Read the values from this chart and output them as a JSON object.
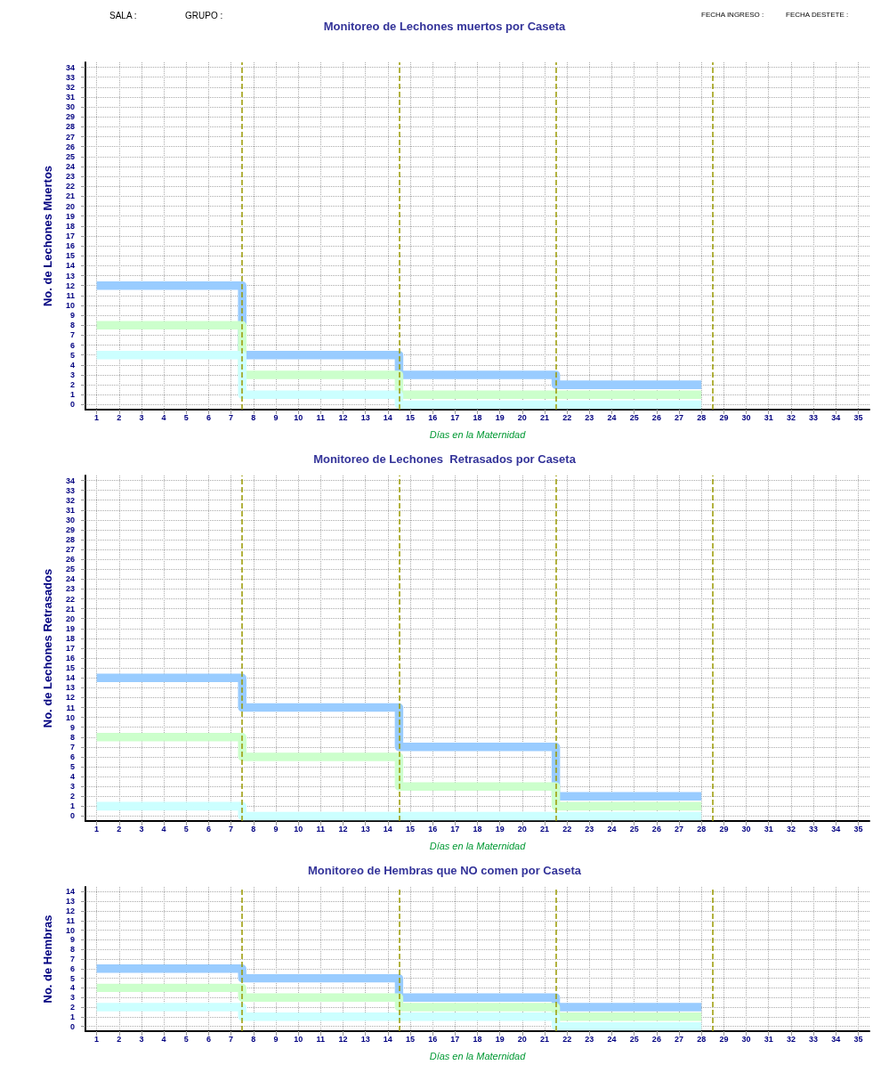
{
  "chart_data": [
    {
      "type": "step",
      "title": "Monitoreo de Lechones muertos por Caseta",
      "xlabel": "Días en la Maternidad",
      "ylabel": "No. de Lechones Muertos",
      "annotations": [
        "SALA :",
        "GRUPO :",
        "FECHA INGRESO :",
        "FECHA DESTETE :"
      ],
      "x": [
        1,
        2,
        3,
        4,
        5,
        6,
        7,
        8,
        9,
        10,
        11,
        12,
        13,
        14,
        15,
        16,
        17,
        18,
        19,
        20,
        21,
        22,
        23,
        24,
        25,
        26,
        27,
        28
      ],
      "xlim": [
        0.5,
        35.5
      ],
      "xticks": [
        1,
        2,
        3,
        4,
        5,
        6,
        7,
        8,
        9,
        10,
        11,
        12,
        13,
        14,
        15,
        16,
        17,
        18,
        19,
        20,
        21,
        22,
        23,
        24,
        25,
        26,
        27,
        28,
        29,
        30,
        31,
        32,
        33,
        34,
        35
      ],
      "ylim": [
        -0.5,
        34.5
      ],
      "yticks": [
        0,
        1,
        2,
        3,
        4,
        5,
        6,
        7,
        8,
        9,
        10,
        11,
        12,
        13,
        14,
        15,
        16,
        17,
        18,
        19,
        20,
        21,
        22,
        23,
        24,
        25,
        26,
        27,
        28,
        29,
        30,
        31,
        32,
        33,
        34
      ],
      "grid": true,
      "ref_lines": [
        {
          "axis": "x",
          "value": 7.5,
          "color": "#999900",
          "line_style": "dashed"
        },
        {
          "axis": "x",
          "value": 14.5,
          "color": "#999900",
          "line_style": "dashed"
        },
        {
          "axis": "x",
          "value": 21.5,
          "color": "#999900",
          "line_style": "dashed"
        },
        {
          "axis": "x",
          "value": 28.5,
          "color": "#999900",
          "line_style": "dashed"
        }
      ],
      "series": [
        {
          "color": "#99ccff",
          "values": [
            12,
            12,
            12,
            12,
            12,
            12,
            12,
            5,
            5,
            5,
            5,
            5,
            5,
            5,
            3,
            3,
            3,
            3,
            3,
            3,
            3,
            2,
            2,
            2,
            2,
            2,
            2,
            2
          ]
        },
        {
          "color": "#ccffcc",
          "values": [
            8,
            8,
            8,
            8,
            8,
            8,
            8,
            3,
            3,
            3,
            3,
            3,
            3,
            3,
            1,
            1,
            1,
            1,
            1,
            1,
            1,
            1,
            1,
            1,
            1,
            1,
            1,
            1
          ]
        },
        {
          "color": "#ccffff",
          "values": [
            5,
            5,
            5,
            5,
            5,
            5,
            5,
            1,
            1,
            1,
            1,
            1,
            1,
            1,
            0,
            0,
            0,
            0,
            0,
            0,
            0,
            0,
            0,
            0,
            0,
            0,
            0,
            0
          ]
        }
      ]
    },
    {
      "type": "step",
      "title": "Monitoreo de Lechones  Retrasados por Caseta",
      "xlabel": "Días en la Maternidad",
      "ylabel": "No. de Lechones Retrasados",
      "x": [
        1,
        2,
        3,
        4,
        5,
        6,
        7,
        8,
        9,
        10,
        11,
        12,
        13,
        14,
        15,
        16,
        17,
        18,
        19,
        20,
        21,
        22,
        23,
        24,
        25,
        26,
        27,
        28
      ],
      "xlim": [
        0.5,
        35.5
      ],
      "xticks": [
        1,
        2,
        3,
        4,
        5,
        6,
        7,
        8,
        9,
        10,
        11,
        12,
        13,
        14,
        15,
        16,
        17,
        18,
        19,
        20,
        21,
        22,
        23,
        24,
        25,
        26,
        27,
        28,
        29,
        30,
        31,
        32,
        33,
        34,
        35
      ],
      "ylim": [
        -0.5,
        34.5
      ],
      "yticks": [
        0,
        1,
        2,
        3,
        4,
        5,
        6,
        7,
        8,
        9,
        10,
        11,
        12,
        13,
        14,
        15,
        16,
        17,
        18,
        19,
        20,
        21,
        22,
        23,
        24,
        25,
        26,
        27,
        28,
        29,
        30,
        31,
        32,
        33,
        34
      ],
      "grid": true,
      "ref_lines": [
        {
          "axis": "x",
          "value": 7.5,
          "color": "#999900",
          "line_style": "dashed"
        },
        {
          "axis": "x",
          "value": 14.5,
          "color": "#999900",
          "line_style": "dashed"
        },
        {
          "axis": "x",
          "value": 21.5,
          "color": "#999900",
          "line_style": "dashed"
        },
        {
          "axis": "x",
          "value": 28.5,
          "color": "#999900",
          "line_style": "dashed"
        }
      ],
      "series": [
        {
          "color": "#99ccff",
          "values": [
            14,
            14,
            14,
            14,
            14,
            14,
            14,
            11,
            11,
            11,
            11,
            11,
            11,
            11,
            7,
            7,
            7,
            7,
            7,
            7,
            7,
            2,
            2,
            2,
            2,
            2,
            2,
            2
          ]
        },
        {
          "color": "#ccffcc",
          "values": [
            8,
            8,
            8,
            8,
            8,
            8,
            8,
            6,
            6,
            6,
            6,
            6,
            6,
            6,
            3,
            3,
            3,
            3,
            3,
            3,
            3,
            1,
            1,
            1,
            1,
            1,
            1,
            1
          ]
        },
        {
          "color": "#ccffff",
          "values": [
            1,
            1,
            1,
            1,
            1,
            1,
            1,
            0,
            0,
            0,
            0,
            0,
            0,
            0,
            0,
            0,
            0,
            0,
            0,
            0,
            0,
            0,
            0,
            0,
            0,
            0,
            0,
            0
          ]
        }
      ]
    },
    {
      "type": "step",
      "title": "Monitoreo de Hembras que NO comen por Caseta",
      "xlabel": "Días en la Maternidad",
      "ylabel": "No. de Hembras",
      "x": [
        1,
        2,
        3,
        4,
        5,
        6,
        7,
        8,
        9,
        10,
        11,
        12,
        13,
        14,
        15,
        16,
        17,
        18,
        19,
        20,
        21,
        22,
        23,
        24,
        25,
        26,
        27,
        28
      ],
      "xlim": [
        0.5,
        35.5
      ],
      "xticks": [
        1,
        2,
        3,
        4,
        5,
        6,
        7,
        8,
        9,
        10,
        11,
        12,
        13,
        14,
        15,
        16,
        17,
        18,
        19,
        20,
        21,
        22,
        23,
        24,
        25,
        26,
        27,
        28,
        29,
        30,
        31,
        32,
        33,
        34,
        35
      ],
      "ylim": [
        -0.5,
        14.5
      ],
      "yticks": [
        0,
        1,
        2,
        3,
        4,
        5,
        6,
        7,
        8,
        9,
        10,
        11,
        12,
        13,
        14
      ],
      "grid": true,
      "ref_lines": [
        {
          "axis": "x",
          "value": 7.5,
          "color": "#999900",
          "line_style": "dashed"
        },
        {
          "axis": "x",
          "value": 14.5,
          "color": "#999900",
          "line_style": "dashed"
        },
        {
          "axis": "x",
          "value": 21.5,
          "color": "#999900",
          "line_style": "dashed"
        },
        {
          "axis": "x",
          "value": 28.5,
          "color": "#999900",
          "line_style": "dashed"
        }
      ],
      "series": [
        {
          "color": "#99ccff",
          "values": [
            6,
            6,
            6,
            6,
            6,
            6,
            6,
            5,
            5,
            5,
            5,
            5,
            5,
            5,
            3,
            3,
            3,
            3,
            3,
            3,
            3,
            2,
            2,
            2,
            2,
            2,
            2,
            2
          ]
        },
        {
          "color": "#ccffcc",
          "values": [
            4,
            4,
            4,
            4,
            4,
            4,
            4,
            3,
            3,
            3,
            3,
            3,
            3,
            3,
            2,
            2,
            2,
            2,
            2,
            2,
            2,
            1,
            1,
            1,
            1,
            1,
            1,
            1
          ]
        },
        {
          "color": "#ccffff",
          "values": [
            2,
            2,
            2,
            2,
            2,
            2,
            2,
            1,
            1,
            1,
            1,
            1,
            1,
            1,
            1,
            1,
            1,
            1,
            1,
            1,
            1,
            0,
            0,
            0,
            0,
            0,
            0,
            0
          ]
        }
      ]
    }
  ]
}
